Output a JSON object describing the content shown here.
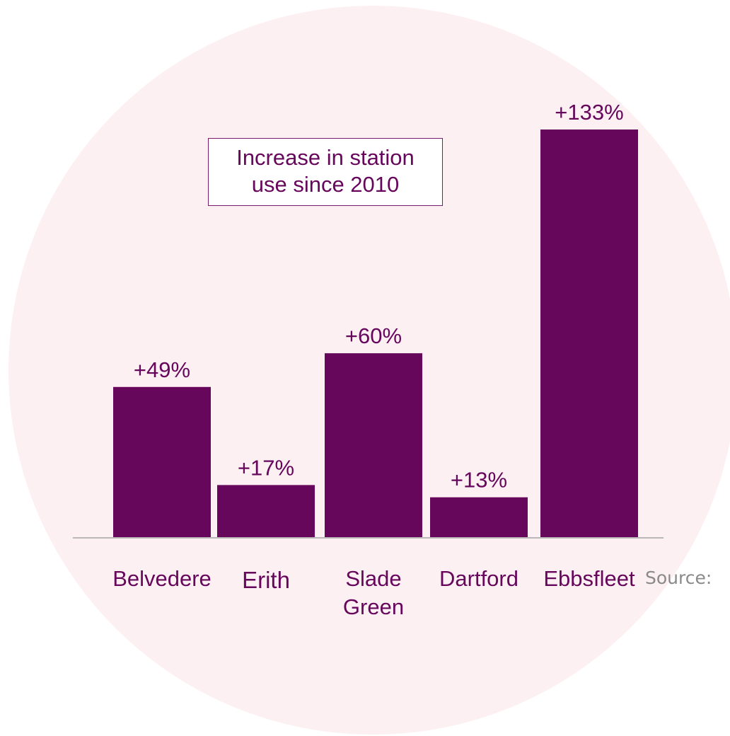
{
  "chart_data": {
    "type": "bar",
    "title": "Increase in station\nuse since 2010",
    "categories": [
      "Belvedere",
      "Erith",
      "Slade\nGreen",
      "Dartford",
      "Ebbsfleet"
    ],
    "values": [
      49,
      17,
      60,
      13,
      133
    ],
    "data_labels": [
      "+49%",
      "+17%",
      "+60%",
      "+13%",
      "+133%"
    ],
    "ylim": [
      0,
      133
    ],
    "xlabel": "",
    "ylabel": "",
    "grid": false,
    "legend": "none",
    "bar_color": "#66075c",
    "text_color": "#66075c"
  },
  "footer": {
    "source": "Source:"
  },
  "colors": {
    "background_circle": "#fdf0f3",
    "axis": "#b8b8b8"
  }
}
